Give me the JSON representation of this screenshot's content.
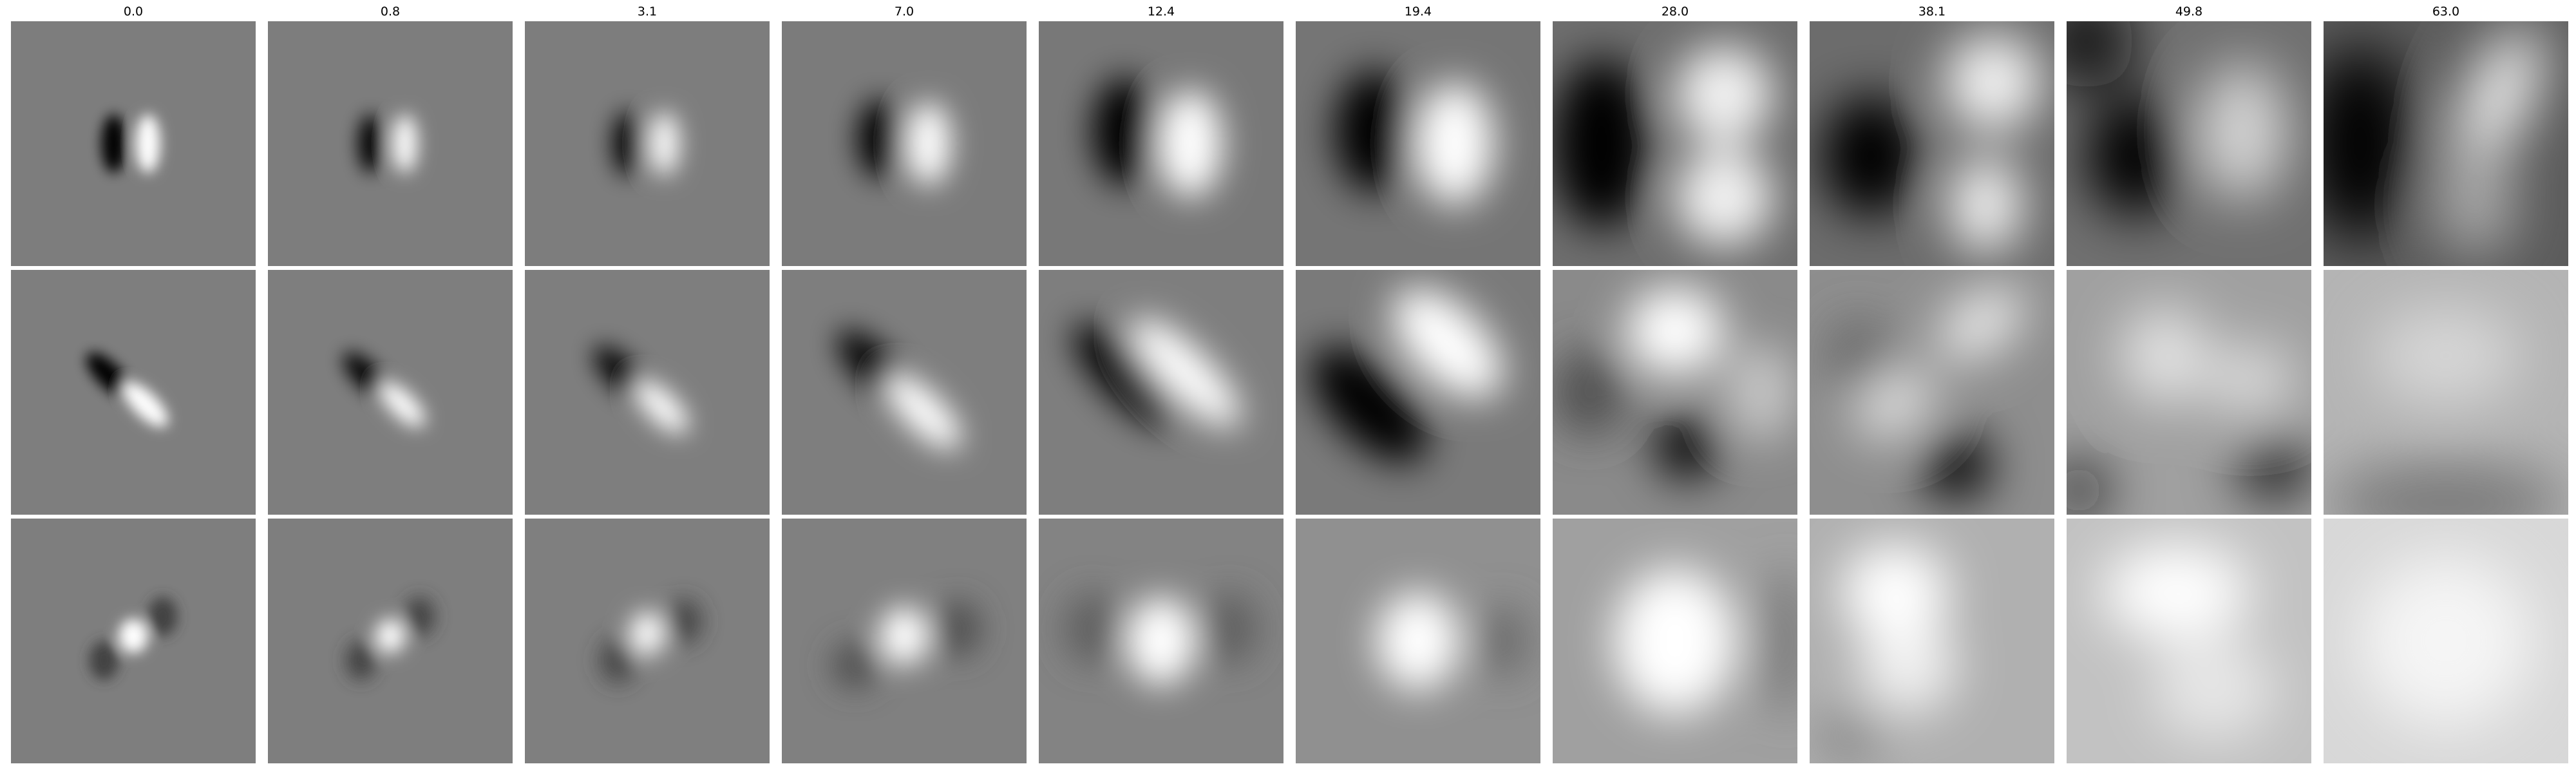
{
  "columns": [
    "0.0",
    "0.8",
    "3.1",
    "7.0",
    "12.4",
    "19.4",
    "28.0",
    "38.1",
    "49.8",
    "63.0"
  ],
  "rows": [
    {
      "tiles": [
        {
          "bg": "#7d7d7d",
          "blobs": [
            [
              "#000000",
              0.42,
              0.5,
              0.05,
              0.12,
              0,
              1
            ],
            [
              "#ffffff",
              0.56,
              0.5,
              0.05,
              0.12,
              0,
              1
            ]
          ]
        },
        {
          "bg": "#7d7d7d",
          "blobs": [
            [
              "#000000",
              0.42,
              0.5,
              0.05,
              0.12,
              0,
              1
            ],
            [
              "#ffffff",
              0.56,
              0.5,
              0.05,
              0.12,
              0,
              1
            ]
          ]
        },
        {
          "bg": "#7d7d7d",
          "blobs": [
            [
              "#000000",
              0.42,
              0.5,
              0.06,
              0.13,
              0,
              1
            ],
            [
              "#ffffff",
              0.57,
              0.5,
              0.06,
              0.13,
              0,
              1
            ]
          ]
        },
        {
          "bg": "#7b7b7b",
          "blobs": [
            [
              "#000000",
              0.4,
              0.48,
              0.09,
              0.16,
              0,
              1
            ],
            [
              "#ffffff",
              0.6,
              0.5,
              0.09,
              0.17,
              0,
              1
            ]
          ]
        },
        {
          "bg": "#787878",
          "blobs": [
            [
              "#000000",
              0.35,
              0.45,
              0.13,
              0.22,
              0,
              1
            ],
            [
              "#ffffff",
              0.62,
              0.5,
              0.13,
              0.22,
              0,
              1
            ]
          ]
        },
        {
          "bg": "#757575",
          "blobs": [
            [
              "#000000",
              0.32,
              0.45,
              0.16,
              0.25,
              0,
              1
            ],
            [
              "#ffffff",
              0.65,
              0.5,
              0.16,
              0.25,
              0,
              1
            ]
          ]
        },
        {
          "bg": "#6e6e6e",
          "blobs": [
            [
              "#000000",
              0.2,
              0.5,
              0.2,
              0.35,
              0,
              1
            ],
            [
              "#ffffff",
              0.7,
              0.3,
              0.2,
              0.2,
              0,
              0.9
            ],
            [
              "#ffffff",
              0.7,
              0.72,
              0.2,
              0.2,
              0,
              0.9
            ]
          ]
        },
        {
          "bg": "#6c6c6c",
          "blobs": [
            [
              "#000000",
              0.25,
              0.55,
              0.2,
              0.25,
              0,
              1
            ],
            [
              "#ffffff",
              0.75,
              0.25,
              0.2,
              0.2,
              0,
              0.9
            ],
            [
              "#ffffff",
              0.72,
              0.75,
              0.15,
              0.2,
              0,
              0.9
            ]
          ]
        },
        {
          "bg": "#707070",
          "blobs": [
            [
              "#000000",
              0.28,
              0.55,
              0.2,
              0.25,
              0,
              1
            ],
            [
              "#111111",
              0.08,
              0.08,
              0.2,
              0.2,
              0,
              0.9
            ],
            [
              "#ffffff",
              0.72,
              0.45,
              0.18,
              0.28,
              0,
              0.7
            ]
          ]
        },
        {
          "bg": "#5c5c5c",
          "blobs": [
            [
              "#000000",
              0.15,
              0.5,
              0.22,
              0.4,
              0,
              1
            ],
            [
              "#ffffff",
              0.72,
              0.3,
              0.12,
              0.3,
              25,
              1
            ],
            [
              "#c8c8c8",
              0.62,
              0.75,
              0.15,
              0.2,
              0,
              0.8
            ]
          ]
        }
      ]
    },
    {
      "tiles": [
        {
          "bg": "#7e7e7e",
          "blobs": [
            [
              "#000000",
              0.4,
              0.43,
              0.05,
              0.12,
              -45,
              1
            ],
            [
              "#ffffff",
              0.55,
              0.55,
              0.05,
              0.12,
              -45,
              1
            ]
          ]
        },
        {
          "bg": "#7e7e7e",
          "blobs": [
            [
              "#000000",
              0.4,
              0.43,
              0.05,
              0.12,
              -45,
              1
            ],
            [
              "#ffffff",
              0.55,
              0.55,
              0.05,
              0.12,
              -45,
              1
            ]
          ]
        },
        {
          "bg": "#7e7e7e",
          "blobs": [
            [
              "#000000",
              0.39,
              0.42,
              0.06,
              0.14,
              -45,
              1
            ],
            [
              "#ffffff",
              0.56,
              0.56,
              0.06,
              0.14,
              -45,
              1
            ]
          ]
        },
        {
          "bg": "#7e7e7e",
          "blobs": [
            [
              "#000000",
              0.38,
              0.4,
              0.08,
              0.2,
              -45,
              1
            ],
            [
              "#ffffff",
              0.58,
              0.58,
              0.08,
              0.2,
              -45,
              1
            ]
          ]
        },
        {
          "bg": "#7e7e7e",
          "blobs": [
            [
              "#000000",
              0.35,
              0.43,
              0.1,
              0.28,
              -45,
              1
            ],
            [
              "#ffffff",
              0.6,
              0.42,
              0.1,
              0.3,
              -45,
              1
            ]
          ]
        },
        {
          "bg": "#7a7a7a",
          "blobs": [
            [
              "#000000",
              0.3,
              0.55,
              0.15,
              0.3,
              -45,
              1
            ],
            [
              "#ffffff",
              0.62,
              0.3,
              0.15,
              0.28,
              -45,
              1
            ]
          ]
        },
        {
          "bg": "#8a8a8a",
          "blobs": [
            [
              "#ffffff",
              0.5,
              0.25,
              0.2,
              0.18,
              0,
              1
            ],
            [
              "#000000",
              0.55,
              0.72,
              0.14,
              0.14,
              0,
              0.9
            ],
            [
              "#4a4a4a",
              0.15,
              0.5,
              0.15,
              0.18,
              0,
              0.9
            ],
            [
              "#dcdcdc",
              0.85,
              0.5,
              0.15,
              0.2,
              0,
              0.7
            ]
          ]
        },
        {
          "bg": "#8e8e8e",
          "blobs": [
            [
              "#000000",
              0.6,
              0.8,
              0.14,
              0.14,
              0,
              1
            ],
            [
              "#ffffff",
              0.7,
              0.22,
              0.2,
              0.12,
              -35,
              0.8
            ],
            [
              "#ffffff",
              0.35,
              0.55,
              0.18,
              0.12,
              -35,
              0.7
            ],
            [
              "#5a5a5a",
              0.2,
              0.35,
              0.12,
              0.15,
              0,
              0.8
            ]
          ]
        },
        {
          "bg": "#a0a0a0",
          "blobs": [
            [
              "#000000",
              0.85,
              0.8,
              0.15,
              0.15,
              0,
              0.8
            ],
            [
              "#111111",
              0.05,
              0.9,
              0.12,
              0.12,
              0,
              0.8
            ],
            [
              "#ffffff",
              0.4,
              0.35,
              0.18,
              0.2,
              0,
              0.7
            ],
            [
              "#ffffff",
              0.75,
              0.45,
              0.18,
              0.15,
              0,
              0.6
            ]
          ]
        },
        {
          "bg": "#b4b4b4",
          "blobs": [
            [
              "#6e6e6e",
              0.5,
              0.95,
              0.5,
              0.15,
              0,
              0.9
            ],
            [
              "#e6e6e6",
              0.5,
              0.35,
              0.3,
              0.2,
              0,
              0.7
            ]
          ]
        }
      ]
    },
    {
      "tiles": [
        {
          "bg": "#7e7e7e",
          "blobs": [
            [
              "#ffffff",
              0.5,
              0.48,
              0.06,
              0.07,
              0,
              1
            ],
            [
              "#3c3c3c",
              0.38,
              0.58,
              0.06,
              0.08,
              0,
              0.9
            ],
            [
              "#3c3c3c",
              0.62,
              0.4,
              0.06,
              0.08,
              0,
              0.9
            ]
          ]
        },
        {
          "bg": "#7e7e7e",
          "blobs": [
            [
              "#ffffff",
              0.5,
              0.48,
              0.06,
              0.07,
              0,
              1
            ],
            [
              "#3c3c3c",
              0.38,
              0.58,
              0.06,
              0.08,
              0,
              0.9
            ],
            [
              "#3c3c3c",
              0.62,
              0.4,
              0.06,
              0.08,
              0,
              0.9
            ]
          ]
        },
        {
          "bg": "#7f7f7f",
          "blobs": [
            [
              "#ffffff",
              0.5,
              0.47,
              0.07,
              0.09,
              0,
              1
            ],
            [
              "#3c3c3c",
              0.38,
              0.58,
              0.07,
              0.09,
              0,
              0.9
            ],
            [
              "#3c3c3c",
              0.65,
              0.42,
              0.07,
              0.09,
              0,
              0.9
            ]
          ]
        },
        {
          "bg": "#808080",
          "blobs": [
            [
              "#ffffff",
              0.5,
              0.48,
              0.1,
              0.12,
              0,
              1
            ],
            [
              "#525252",
              0.3,
              0.6,
              0.1,
              0.1,
              0,
              0.9
            ],
            [
              "#525252",
              0.72,
              0.45,
              0.1,
              0.12,
              0,
              0.9
            ]
          ]
        },
        {
          "bg": "#838383",
          "blobs": [
            [
              "#ffffff",
              0.5,
              0.5,
              0.14,
              0.18,
              0,
              1
            ],
            [
              "#5a5a5a",
              0.22,
              0.45,
              0.12,
              0.15,
              0,
              0.8
            ],
            [
              "#5a5a5a",
              0.78,
              0.45,
              0.12,
              0.15,
              0,
              0.8
            ]
          ]
        },
        {
          "bg": "#909090",
          "blobs": [
            [
              "#ffffff",
              0.5,
              0.5,
              0.17,
              0.2,
              0,
              1
            ],
            [
              "#646464",
              0.85,
              0.5,
              0.1,
              0.15,
              0,
              0.8
            ]
          ]
        },
        {
          "bg": "#a0a0a0",
          "blobs": [
            [
              "#ffffff",
              0.5,
              0.5,
              0.25,
              0.3,
              0,
              1
            ],
            [
              "#6e6e6e",
              0.95,
              0.5,
              0.1,
              0.3,
              0,
              0.7
            ]
          ]
        },
        {
          "bg": "#b0b0b0",
          "blobs": [
            [
              "#ffffff",
              0.35,
              0.3,
              0.22,
              0.2,
              0,
              1
            ],
            [
              "#ffffff",
              0.4,
              0.6,
              0.2,
              0.2,
              0,
              0.8
            ],
            [
              "#808080",
              0.15,
              0.9,
              0.15,
              0.12,
              0,
              0.7
            ]
          ]
        },
        {
          "bg": "#c2c2c2",
          "blobs": [
            [
              "#ffffff",
              0.45,
              0.3,
              0.3,
              0.2,
              0,
              1
            ],
            [
              "#ffffff",
              0.6,
              0.7,
              0.25,
              0.2,
              0,
              0.6
            ]
          ]
        },
        {
          "bg": "#d8d8d8",
          "blobs": [
            [
              "#f5f5f5",
              0.5,
              0.5,
              0.35,
              0.35,
              0,
              1
            ]
          ]
        }
      ]
    }
  ]
}
